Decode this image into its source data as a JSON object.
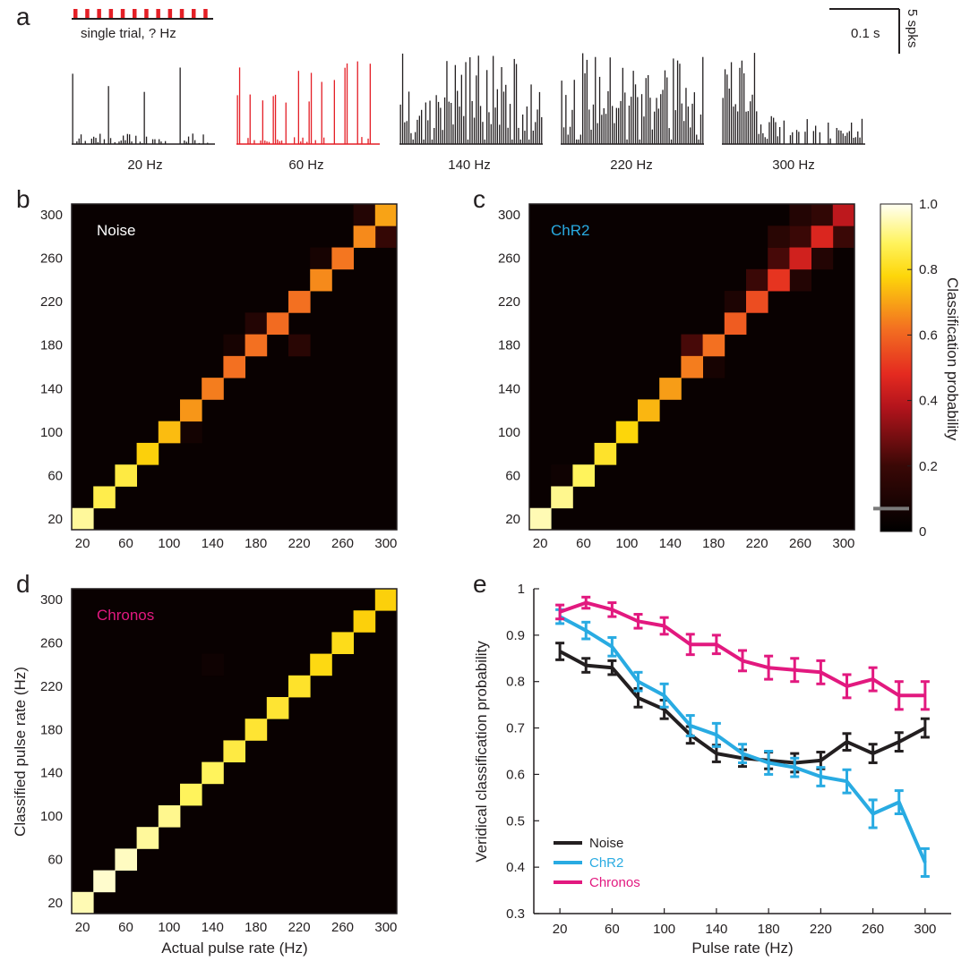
{
  "panel_letters": [
    "a",
    "b",
    "c",
    "d",
    "e"
  ],
  "panel_a": {
    "trial_label": "single trial, ? Hz",
    "scale_time": "0.1 s",
    "scale_count": "5 spks",
    "psth": [
      {
        "label": "20 Hz",
        "rate": 20,
        "highlight": false
      },
      {
        "label": "60 Hz",
        "rate": 60,
        "highlight": true
      },
      {
        "label": "140 Hz",
        "rate": 140,
        "highlight": false
      },
      {
        "label": "220 Hz",
        "rate": 220,
        "highlight": false
      },
      {
        "label": "300 Hz",
        "rate": 300,
        "highlight": false
      }
    ],
    "colors": {
      "black": "#231f20",
      "red": "#e41f26"
    }
  },
  "heatmap_axes": {
    "ticks": [
      "20",
      "60",
      "100",
      "140",
      "180",
      "220",
      "260",
      "300"
    ],
    "xlabel": "Actual pulse rate (Hz)",
    "ylabel": "Classified pulse rate (Hz)"
  },
  "colorbar": {
    "label": "Classification probability",
    "ticks": [
      "0",
      "0.2",
      "0.4",
      "0.6",
      "0.8",
      "1.0"
    ],
    "range": [
      0,
      1
    ],
    "chance_level": 0.07
  },
  "chart_data": [
    {
      "type": "heatmap",
      "panel": "b",
      "label": "Noise",
      "label_color": "#ffffff",
      "x_categories": [
        20,
        40,
        60,
        80,
        100,
        120,
        140,
        160,
        180,
        200,
        220,
        240,
        260,
        280,
        300
      ],
      "y_categories": [
        20,
        40,
        60,
        80,
        100,
        120,
        140,
        160,
        180,
        200,
        220,
        240,
        260,
        280,
        300
      ],
      "diagonal": [
        0.93,
        0.86,
        0.85,
        0.77,
        0.74,
        0.68,
        0.64,
        0.62,
        0.62,
        0.61,
        0.62,
        0.66,
        0.63,
        0.66,
        0.7
      ],
      "off_diagonal": [
        {
          "x": 180,
          "y": 200,
          "value": 0.12
        },
        {
          "x": 300,
          "y": 280,
          "value": 0.18
        },
        {
          "x": 280,
          "y": 300,
          "value": 0.12
        },
        {
          "x": 220,
          "y": 180,
          "value": 0.14
        },
        {
          "x": 120,
          "y": 100,
          "value": 0.07
        },
        {
          "x": 160,
          "y": 180,
          "value": 0.08
        },
        {
          "x": 240,
          "y": 260,
          "value": 0.08
        }
      ]
    },
    {
      "type": "heatmap",
      "panel": "c",
      "label": "ChR2",
      "label_color": "#29abe2",
      "x_categories": [
        20,
        40,
        60,
        80,
        100,
        120,
        140,
        160,
        180,
        200,
        220,
        240,
        260,
        280,
        300
      ],
      "y_categories": [
        20,
        40,
        60,
        80,
        100,
        120,
        140,
        160,
        180,
        200,
        220,
        240,
        260,
        280,
        300
      ],
      "diagonal": [
        0.95,
        0.92,
        0.88,
        0.82,
        0.78,
        0.73,
        0.69,
        0.64,
        0.62,
        0.58,
        0.55,
        0.5,
        0.44,
        0.46,
        0.4
      ],
      "off_diagonal": [
        {
          "x": 160,
          "y": 180,
          "value": 0.22
        },
        {
          "x": 220,
          "y": 240,
          "value": 0.2
        },
        {
          "x": 240,
          "y": 260,
          "value": 0.22
        },
        {
          "x": 260,
          "y": 280,
          "value": 0.2
        },
        {
          "x": 280,
          "y": 300,
          "value": 0.17
        },
        {
          "x": 240,
          "y": 280,
          "value": 0.14
        },
        {
          "x": 260,
          "y": 300,
          "value": 0.12
        },
        {
          "x": 300,
          "y": 280,
          "value": 0.2
        },
        {
          "x": 280,
          "y": 260,
          "value": 0.12
        },
        {
          "x": 260,
          "y": 240,
          "value": 0.12
        },
        {
          "x": 200,
          "y": 220,
          "value": 0.1
        },
        {
          "x": 180,
          "y": 160,
          "value": 0.08
        },
        {
          "x": 40,
          "y": 60,
          "value": 0.05
        }
      ]
    },
    {
      "type": "heatmap",
      "panel": "d",
      "label": "Chronos",
      "label_color": "#e2197f",
      "x_categories": [
        20,
        40,
        60,
        80,
        100,
        120,
        140,
        160,
        180,
        200,
        220,
        240,
        260,
        280,
        300
      ],
      "y_categories": [
        20,
        40,
        60,
        80,
        100,
        120,
        140,
        160,
        180,
        200,
        220,
        240,
        260,
        280,
        300
      ],
      "diagonal": [
        0.95,
        0.97,
        0.96,
        0.93,
        0.92,
        0.88,
        0.88,
        0.85,
        0.83,
        0.83,
        0.82,
        0.79,
        0.8,
        0.77,
        0.77
      ],
      "off_diagonal": [
        {
          "x": 140,
          "y": 240,
          "value": 0.05
        }
      ]
    },
    {
      "type": "line",
      "panel": "e",
      "xlabel": "Pulse rate (Hz)",
      "ylabel": "Veridical classification probability",
      "x": [
        20,
        40,
        60,
        80,
        100,
        120,
        140,
        160,
        180,
        200,
        220,
        240,
        260,
        280,
        300
      ],
      "x_ticks": [
        20,
        60,
        100,
        140,
        180,
        220,
        260,
        300
      ],
      "y_ticks": [
        0.3,
        0.4,
        0.5,
        0.6,
        0.7,
        0.8,
        0.9,
        1
      ],
      "y_tick_labels": [
        "0.3",
        "0.4",
        "0.5",
        "0.6",
        "0.7",
        "0.8",
        "0.9",
        "1"
      ],
      "xlim": [
        0,
        320
      ],
      "ylim": [
        0.3,
        1.0
      ],
      "legend_position": "bottom-left",
      "series": [
        {
          "name": "Noise",
          "color": "#231f20",
          "values": [
            0.865,
            0.835,
            0.83,
            0.765,
            0.74,
            0.685,
            0.645,
            0.635,
            0.63,
            0.625,
            0.63,
            0.67,
            0.645,
            0.67,
            0.7
          ],
          "errors": [
            0.018,
            0.015,
            0.015,
            0.02,
            0.02,
            0.018,
            0.018,
            0.018,
            0.018,
            0.02,
            0.018,
            0.018,
            0.02,
            0.02,
            0.02
          ]
        },
        {
          "name": "ChR2",
          "color": "#29abe2",
          "values": [
            0.94,
            0.91,
            0.875,
            0.8,
            0.77,
            0.705,
            0.685,
            0.645,
            0.625,
            0.615,
            0.595,
            0.585,
            0.515,
            0.54,
            0.41
          ],
          "errors": [
            0.015,
            0.018,
            0.02,
            0.02,
            0.025,
            0.022,
            0.025,
            0.02,
            0.025,
            0.02,
            0.02,
            0.025,
            0.03,
            0.025,
            0.03
          ]
        },
        {
          "name": "Chronos",
          "color": "#e2197f",
          "values": [
            0.95,
            0.97,
            0.955,
            0.93,
            0.92,
            0.88,
            0.88,
            0.845,
            0.83,
            0.825,
            0.82,
            0.79,
            0.805,
            0.77,
            0.77
          ],
          "errors": [
            0.015,
            0.012,
            0.015,
            0.015,
            0.018,
            0.022,
            0.02,
            0.022,
            0.025,
            0.025,
            0.025,
            0.025,
            0.025,
            0.03,
            0.03
          ]
        }
      ]
    }
  ]
}
